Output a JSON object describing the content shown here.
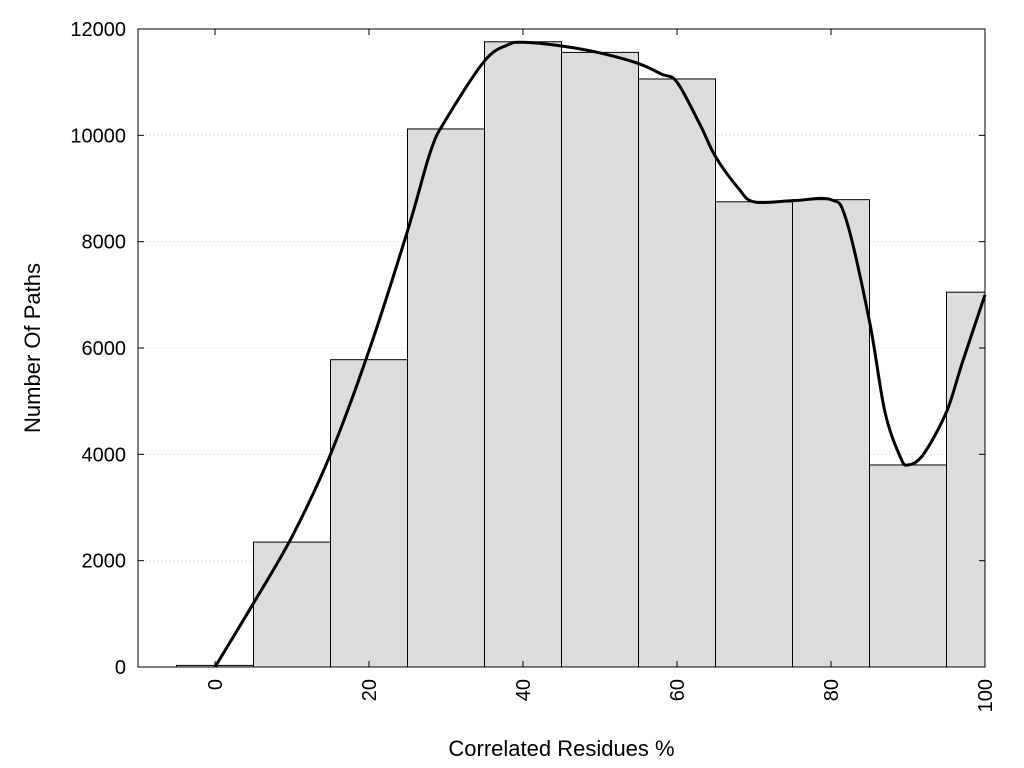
{
  "chart_data": {
    "type": "bar",
    "title": "",
    "xlabel": "Correlated Residues %",
    "ylabel": "Number Of Paths",
    "xlim": [
      -10,
      100
    ],
    "ylim": [
      0,
      12000
    ],
    "x_ticks": [
      0,
      20,
      40,
      60,
      80,
      100
    ],
    "y_ticks": [
      0,
      2000,
      4000,
      6000,
      8000,
      10000,
      12000
    ],
    "grid": "horizontal-dotted",
    "legend": "none",
    "bar_width": 10,
    "bar_color": "#dcdcdc",
    "bar_edge_color": "#000000",
    "bars": [
      {
        "x": 0,
        "value": 30
      },
      {
        "x": 10,
        "value": 2350
      },
      {
        "x": 20,
        "value": 5780
      },
      {
        "x": 30,
        "value": 10120
      },
      {
        "x": 40,
        "value": 11760
      },
      {
        "x": 50,
        "value": 11560
      },
      {
        "x": 60,
        "value": 11060
      },
      {
        "x": 70,
        "value": 8750
      },
      {
        "x": 80,
        "value": 8790
      },
      {
        "x": 90,
        "value": 3800
      },
      {
        "x": 100,
        "value": 7050
      }
    ],
    "curve": {
      "color": "#000000",
      "points": [
        [
          0,
          0
        ],
        [
          5,
          1200
        ],
        [
          10,
          2450
        ],
        [
          15,
          4000
        ],
        [
          20,
          5950
        ],
        [
          25,
          8200
        ],
        [
          28,
          9700
        ],
        [
          30,
          10300
        ],
        [
          35,
          11400
        ],
        [
          38,
          11700
        ],
        [
          40,
          11750
        ],
        [
          45,
          11680
        ],
        [
          50,
          11550
        ],
        [
          55,
          11350
        ],
        [
          58,
          11150
        ],
        [
          60,
          11000
        ],
        [
          63,
          10200
        ],
        [
          65,
          9600
        ],
        [
          68,
          9000
        ],
        [
          70,
          8750
        ],
        [
          75,
          8770
        ],
        [
          80,
          8790
        ],
        [
          82,
          8400
        ],
        [
          85,
          6500
        ],
        [
          87,
          4800
        ],
        [
          89,
          3950
        ],
        [
          90,
          3800
        ],
        [
          92,
          4000
        ],
        [
          95,
          4800
        ],
        [
          97,
          5700
        ],
        [
          100,
          7000
        ]
      ]
    }
  }
}
